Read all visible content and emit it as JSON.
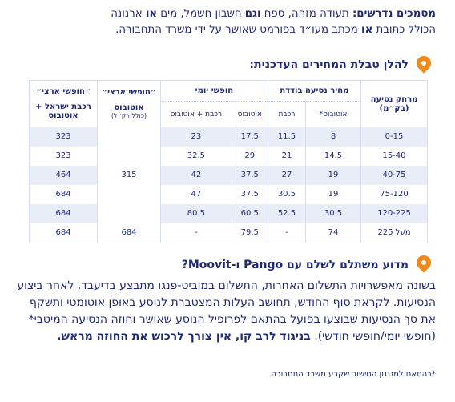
{
  "intro": {
    "label": "מסמכים נדרשים:",
    "line1_a": " תעודה מזהה, ספח ",
    "and_word": "וגם",
    "line1_b": " חשבון חשמל, מים ",
    "or_word": "או",
    "line1_c": " ארנונה",
    "line2_a": "הכולל כתובת ",
    "line2_or": "או",
    "line2_b": " מכתב מעו״ד בפורמט שאושר על ידי משרד התחבורה."
  },
  "table_heading": "להלן טבלת המחירים העדכנית:",
  "table": {
    "col_distance": "מרחק נסיעה (בק״מ)",
    "group_single": "מחיר נסיעה בודדת",
    "group_daily": "חופשי יומי",
    "col_monthly_bus": "״חופשי ארצי״",
    "col_monthly_bus_sub": "אוטובוס",
    "col_monthly_bus_note": "(כולל רק״ל)",
    "col_monthly_all": "״חופשי ארצי״",
    "col_monthly_all_sub": "רכבת ישראל + אוטובוס",
    "sub_single_bus": "אוטובוס*",
    "sub_single_train": "רכבת",
    "sub_daily_bus": "אוטובוס",
    "sub_daily_train": "רכבת + אוטובוס",
    "merged_monthly_bus": "315",
    "rows": [
      {
        "range": "0-15",
        "single_bus": "8",
        "single_train": "11.5",
        "daily_bus": "17.5",
        "daily_train": "23",
        "monthly_all": "323"
      },
      {
        "range": "15-40",
        "single_bus": "14.5",
        "single_train": "21",
        "daily_bus": "29",
        "daily_train": "32.5",
        "monthly_all": "323"
      },
      {
        "range": "40-75",
        "single_bus": "19",
        "single_train": "27",
        "daily_bus": "37.5",
        "daily_train": "42",
        "monthly_all": "464"
      },
      {
        "range": "75-120",
        "single_bus": "19",
        "single_train": "30.5",
        "daily_bus": "37.5",
        "daily_train": "47",
        "monthly_all": "684"
      },
      {
        "range": "120-225",
        "single_bus": "30.5",
        "single_train": "52.5",
        "daily_bus": "60.5",
        "daily_train": "80.5",
        "monthly_all": "684"
      }
    ],
    "last_row": {
      "range": "מעל 225",
      "single_bus": "74",
      "single_train": "-",
      "daily_bus": "79.5",
      "daily_train": "-",
      "monthly_bus": "684",
      "monthly_all": "684"
    }
  },
  "why_heading": "מדוע משתלם לשלם עם Pango ו-Moovit?",
  "why_body": "בשונה מאפשרויות התשלום האחרות, התשלום במוביט-פנגו מתבצע בדיעבד, לאחר ביצוע הנסיעות. לקראת סוף החודש, תחושב העלות המצטברת לנוסע באופן אוטומטי ותשקף את סך הנסיעות שבוצעו בפועל בהתאם לפרופיל הנוסע שאושר וחוזה הנסיעה המיטבי* (חופשי יומי/חופשי חודשי). ",
  "why_bold": "בניגוד לרב קו, אין צורך לרכוש את החוזה מראש.",
  "footnote": "*בהתאם למנגנון החישוב שקבע משרד התחבורה",
  "colors": {
    "brand_navy": "#1e2a78",
    "accent_orange": "#f08a1c",
    "row_shade": "#e8edf8"
  }
}
